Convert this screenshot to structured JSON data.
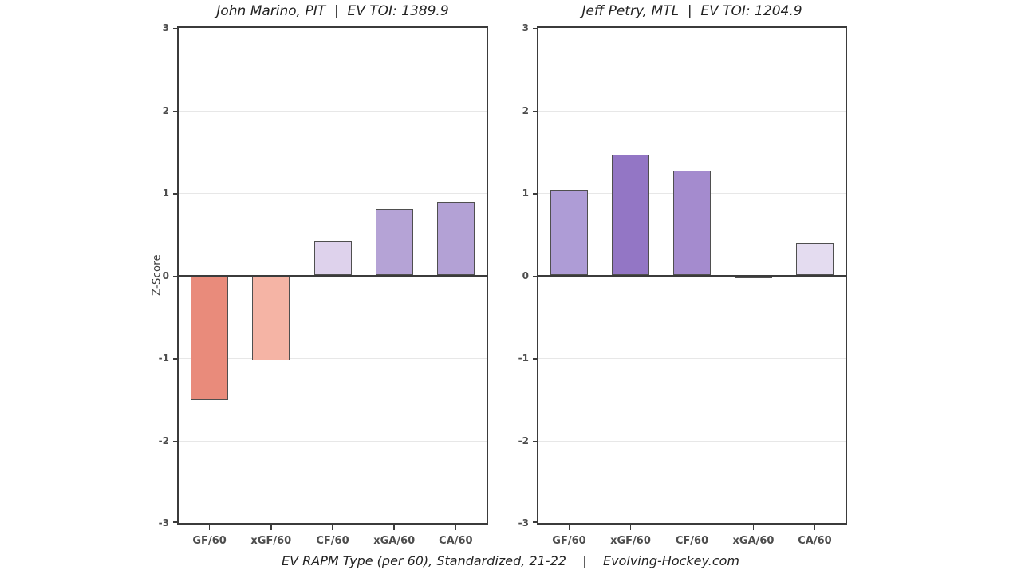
{
  "caption": "EV RAPM Type (per 60), Standardized, 21-22    |    Evolving-Hockey.com",
  "colors": {
    "axis": "#3b3b3b",
    "grid": "#e7e7e7",
    "tick_label": "#4d4d4d",
    "bar_border": "#4f4f4f",
    "background": "#ffffff"
  },
  "chart_data": [
    {
      "type": "bar",
      "title": "John Marino, PIT  |  EV TOI: 1389.9",
      "ylabel": "Z-Score",
      "xlabel": "",
      "categories": [
        "GF/60",
        "xGF/60",
        "CF/60",
        "xGA/60",
        "CA/60"
      ],
      "values": [
        -1.51,
        -1.03,
        0.42,
        0.81,
        0.88
      ],
      "bar_colors": [
        "#e98b7b",
        "#f5b4a5",
        "#ded2ec",
        "#b5a3d6",
        "#b3a1d5"
      ],
      "ylim": [
        -3,
        3
      ],
      "yticks": [
        3,
        2,
        1,
        0,
        -1,
        -2,
        -3
      ],
      "grid": true,
      "legend": "none"
    },
    {
      "type": "bar",
      "title": "Jeff Petry, MTL  |  EV TOI: 1204.9",
      "ylabel": "",
      "xlabel": "",
      "categories": [
        "GF/60",
        "xGF/60",
        "CF/60",
        "xGA/60",
        "CA/60"
      ],
      "values": [
        1.04,
        1.46,
        1.27,
        -0.03,
        0.39
      ],
      "bar_colors": [
        "#ae9cd6",
        "#9376c5",
        "#a48bce",
        "#fbfafc",
        "#e4dcf0"
      ],
      "ylim": [
        -3,
        3
      ],
      "yticks": [
        3,
        2,
        1,
        0,
        -1,
        -2,
        -3
      ],
      "grid": true,
      "legend": "none"
    }
  ]
}
